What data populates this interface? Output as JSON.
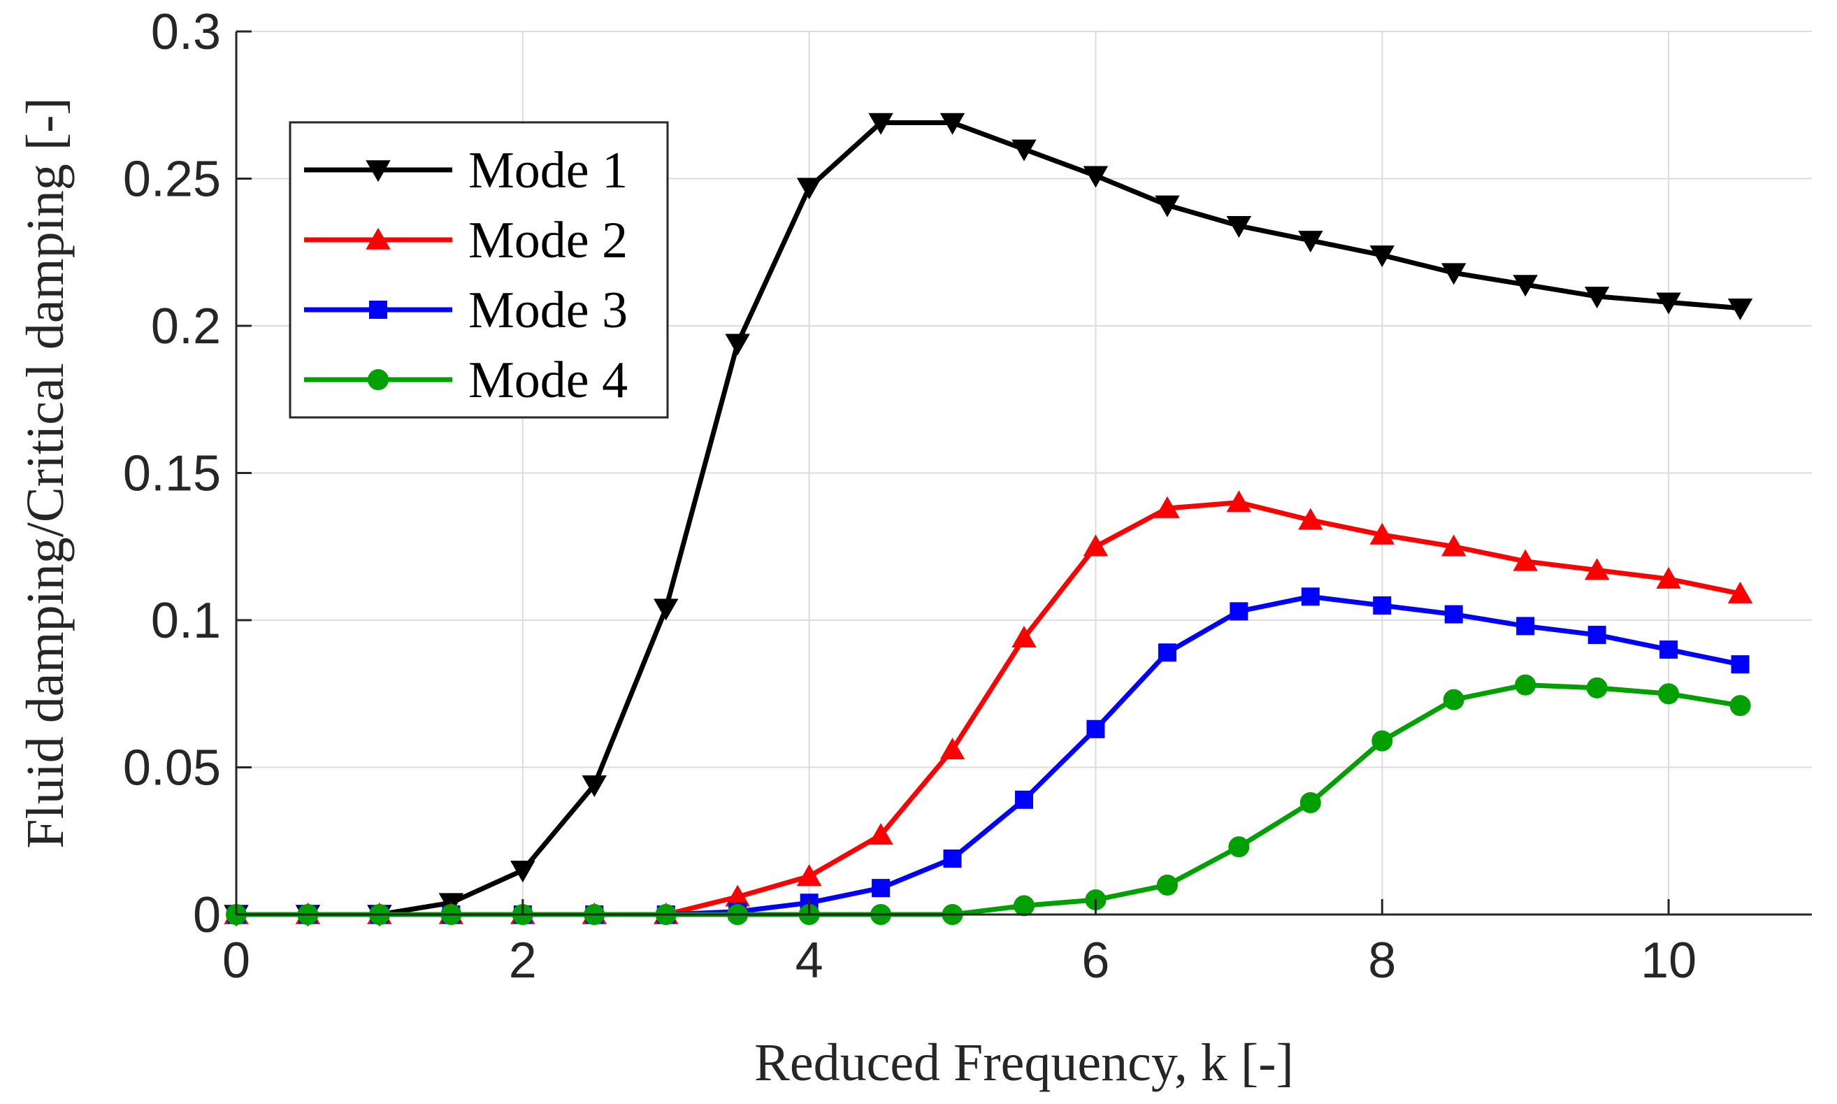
{
  "chart_data": {
    "type": "line",
    "title": "",
    "xlabel": "Reduced Frequency, k [-]",
    "ylabel": "Fluid damping/Critical damping [-]",
    "xlim": [
      0,
      11
    ],
    "ylim": [
      0,
      0.3
    ],
    "xticks": [
      0,
      2,
      4,
      6,
      8,
      10
    ],
    "xtick_labels": [
      "0",
      "2",
      "4",
      "6",
      "8",
      "10"
    ],
    "yticks": [
      0,
      0.05,
      0.1,
      0.15,
      0.2,
      0.25,
      0.3
    ],
    "ytick_labels": [
      "0",
      "0.05",
      "0.1",
      "0.15",
      "0.2",
      "0.25",
      "0.3"
    ],
    "grid": true,
    "legend_position": "top-left",
    "x": [
      0,
      0.5,
      1,
      1.5,
      2,
      2.5,
      3,
      3.5,
      4,
      4.5,
      5,
      5.5,
      6,
      6.5,
      7,
      7.5,
      8,
      8.5,
      9,
      9.5,
      10,
      10.5
    ],
    "series": [
      {
        "name": "Mode 1",
        "color": "#000000",
        "marker": "triangle-down",
        "values": [
          0.0,
          0.0,
          0.0,
          0.004,
          0.015,
          0.044,
          0.104,
          0.194,
          0.247,
          0.269,
          0.269,
          0.26,
          0.251,
          0.241,
          0.234,
          0.229,
          0.224,
          0.218,
          0.214,
          0.21,
          0.208,
          0.206
        ]
      },
      {
        "name": "Mode 2",
        "color": "#ff0000",
        "marker": "triangle-up",
        "values": [
          0.0,
          0.0,
          0.0,
          0.0,
          0.0,
          0.0,
          0.0,
          0.006,
          0.013,
          0.027,
          0.056,
          0.094,
          0.125,
          0.138,
          0.14,
          0.134,
          0.129,
          0.125,
          0.12,
          0.117,
          0.114,
          0.109
        ]
      },
      {
        "name": "Mode 3",
        "color": "#0000ff",
        "marker": "square",
        "values": [
          0.0,
          0.0,
          0.0,
          0.0,
          0.0,
          0.0,
          0.0,
          0.001,
          0.004,
          0.009,
          0.019,
          0.039,
          0.063,
          0.089,
          0.103,
          0.108,
          0.105,
          0.102,
          0.098,
          0.095,
          0.09,
          0.085
        ]
      },
      {
        "name": "Mode 4",
        "color": "#00a000",
        "marker": "circle",
        "values": [
          0.0,
          0.0,
          0.0,
          0.0,
          0.0,
          0.0,
          0.0,
          0.0,
          0.0,
          0.0,
          0.0,
          0.003,
          0.005,
          0.01,
          0.023,
          0.038,
          0.059,
          0.073,
          0.078,
          0.077,
          0.075,
          0.071
        ]
      }
    ]
  }
}
